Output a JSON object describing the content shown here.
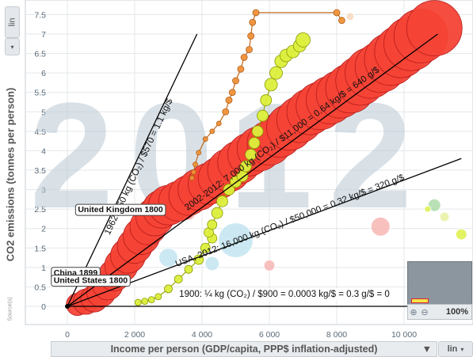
{
  "chart_data": {
    "type": "scatter",
    "year_watermark": "2012",
    "xlabel": "Income per person (GDP/capita, PPP$ inflation-adjusted)",
    "ylabel": "CO2 emissions (tonnes per person)",
    "xlim": [
      -1500,
      11500
    ],
    "ylim": [
      -0.3,
      7.6
    ],
    "x_ticks": [
      0,
      2000,
      4000,
      6000,
      8000,
      10000
    ],
    "x_tick_labels": [
      "0",
      "2 000",
      "4 000",
      "6 000",
      "8 000",
      "10 000"
    ],
    "y_ticks": [
      0,
      0.5,
      1,
      1.5,
      2,
      2.5,
      3,
      3.5,
      4,
      4.5,
      5,
      5.5,
      6,
      6.5,
      7,
      7.5
    ],
    "y_tick_labels": [
      "0",
      "0.5",
      "1",
      "1.5",
      "2",
      "2.5",
      "3",
      "3.5",
      "4",
      "4.5",
      "5",
      "5.5",
      "6",
      "6.5",
      "7",
      "7.5"
    ],
    "colors": {
      "red": "#f44336",
      "yellow": "#dcef3c",
      "orange": "#f0923a",
      "light_blue": "#bfe3f0",
      "pink": "#f6b2ae",
      "green": "#a7d9a2"
    },
    "series": [
      {
        "name": "United States",
        "color": "#f44336",
        "points": [
          [
            300,
            0.05,
            14
          ],
          [
            550,
            0.12,
            16
          ],
          [
            800,
            0.2,
            17
          ],
          [
            1000,
            0.35,
            18
          ],
          [
            1200,
            0.55,
            19
          ],
          [
            1400,
            0.8,
            20
          ],
          [
            1600,
            1.05,
            21
          ],
          [
            1800,
            1.3,
            22
          ],
          [
            2000,
            1.55,
            22
          ],
          [
            2200,
            1.8,
            23
          ],
          [
            2400,
            2.05,
            23
          ],
          [
            2600,
            2.3,
            24
          ],
          [
            2800,
            2.5,
            24
          ],
          [
            3000,
            2.6,
            25
          ],
          [
            3300,
            2.7,
            25
          ],
          [
            3600,
            2.85,
            25
          ],
          [
            3900,
            3.0,
            26
          ],
          [
            4200,
            3.15,
            26
          ],
          [
            4500,
            3.3,
            26
          ],
          [
            4800,
            3.5,
            27
          ],
          [
            5100,
            3.7,
            27
          ],
          [
            5400,
            3.9,
            27
          ],
          [
            5700,
            4.05,
            28
          ],
          [
            6000,
            4.2,
            28
          ],
          [
            6300,
            4.4,
            28
          ],
          [
            6600,
            4.6,
            29
          ],
          [
            6900,
            4.8,
            29
          ],
          [
            7200,
            5.0,
            29
          ],
          [
            7500,
            5.15,
            30
          ],
          [
            7800,
            5.3,
            30
          ],
          [
            8100,
            5.45,
            30
          ],
          [
            8400,
            5.6,
            31
          ],
          [
            8700,
            5.8,
            31
          ],
          [
            9000,
            6.0,
            32
          ],
          [
            9300,
            6.15,
            32
          ],
          [
            9600,
            6.35,
            33
          ],
          [
            9900,
            6.55,
            33
          ],
          [
            10200,
            6.75,
            34
          ],
          [
            10500,
            6.95,
            34
          ],
          [
            10900,
            7.15,
            35
          ]
        ]
      },
      {
        "name": "China",
        "color": "#dcef3c",
        "points": [
          [
            2100,
            0.1,
            4
          ],
          [
            2300,
            0.13,
            4
          ],
          [
            2500,
            0.17,
            4
          ],
          [
            2700,
            0.25,
            4
          ],
          [
            3000,
            0.45,
            5
          ],
          [
            3300,
            0.7,
            5
          ],
          [
            3600,
            0.95,
            5
          ],
          [
            3900,
            1.2,
            6
          ],
          [
            4100,
            1.5,
            6
          ],
          [
            4300,
            1.75,
            6
          ],
          [
            4200,
            1.9,
            6
          ],
          [
            4300,
            2.1,
            6
          ],
          [
            4450,
            2.4,
            7
          ],
          [
            4600,
            2.7,
            7
          ],
          [
            4800,
            3.0,
            7
          ],
          [
            5000,
            3.2,
            7
          ],
          [
            5200,
            3.35,
            7
          ],
          [
            5300,
            3.6,
            7
          ],
          [
            5450,
            3.9,
            7
          ],
          [
            5550,
            4.2,
            7
          ],
          [
            5650,
            4.5,
            7
          ],
          [
            5800,
            4.9,
            7
          ],
          [
            5900,
            5.3,
            7
          ],
          [
            6050,
            5.7,
            8
          ],
          [
            6200,
            6.0,
            8
          ],
          [
            6350,
            6.3,
            8
          ],
          [
            6500,
            6.45,
            8
          ],
          [
            6700,
            6.55,
            8
          ],
          [
            6900,
            6.7,
            8
          ],
          [
            7000,
            6.85,
            9
          ]
        ]
      },
      {
        "name": "United Kingdom",
        "color": "#f0923a",
        "points": [
          [
            3700,
            3.3,
            3
          ],
          [
            3750,
            3.45,
            3
          ],
          [
            3800,
            3.65,
            3
          ],
          [
            3900,
            3.95,
            3
          ],
          [
            4100,
            4.3,
            3
          ],
          [
            4300,
            4.5,
            3
          ],
          [
            4500,
            4.7,
            3
          ],
          [
            4700,
            5.0,
            4
          ],
          [
            4800,
            5.3,
            4
          ],
          [
            4900,
            5.5,
            4
          ],
          [
            5000,
            5.8,
            4
          ],
          [
            5150,
            6.1,
            4
          ],
          [
            5250,
            6.4,
            4
          ],
          [
            5400,
            6.6,
            4
          ],
          [
            5450,
            6.95,
            4
          ],
          [
            5500,
            7.3,
            4
          ],
          [
            5600,
            7.55,
            4
          ],
          [
            8000,
            7.55,
            4
          ],
          [
            8150,
            7.35,
            4
          ]
        ]
      }
    ],
    "other_bubbles": [
      {
        "x": 5000,
        "y": 1.7,
        "r": 22,
        "color": "#bfe3f0"
      },
      {
        "x": 3000,
        "y": 1.25,
        "r": 12,
        "color": "#bfe3f0"
      },
      {
        "x": 4300,
        "y": 1.1,
        "r": 9,
        "color": "#bfe3f0"
      },
      {
        "x": 6000,
        "y": 1.05,
        "r": 7,
        "color": "#f6b2ae"
      },
      {
        "x": 9300,
        "y": 2.05,
        "r": 12,
        "color": "#f6b2ae"
      },
      {
        "x": 10900,
        "y": 2.6,
        "r": 8,
        "color": "#a7d9a2"
      },
      {
        "x": 11200,
        "y": 2.3,
        "r": 6,
        "color": "#e6ef9a"
      },
      {
        "x": 10700,
        "y": 2.5,
        "r": 4,
        "color": "#dcef3c"
      },
      {
        "x": 11700,
        "y": 1.85,
        "r": 7,
        "color": "#dcef3c"
      },
      {
        "x": 8400,
        "y": 7.45,
        "r": 5,
        "color": "#f6d6b8"
      },
      {
        "x": 3600,
        "y": 2.4,
        "r": 9,
        "color": "#f6b2ae"
      }
    ],
    "slope_lines": [
      {
        "label": "1962: 650 kg (CO₂) / $570 = 1.1 kg/$",
        "end": [
          3850,
          7.0
        ]
      },
      {
        "label": "2002-2012: 7,000 kg (CO₂) / $11,000 = 0.64 kg/$ = 640 g/$",
        "end": [
          11000,
          7.0
        ]
      },
      {
        "label": "USA, 2012: 16,000 kg (CO₂) / $50,000 = 0.32 kg/$ = 320 g/$",
        "end": [
          11700,
          3.8
        ]
      },
      {
        "label": "1900: ¼ kg (CO₂) / $900 = 0.0003 kg/$ = 0.3 g/$ = 0",
        "end": [
          11700,
          0.0
        ]
      }
    ],
    "point_labels": [
      {
        "text": "United Kingdom 1800",
        "x": 220,
        "y": 2.5
      },
      {
        "text": "China 1899",
        "x": -500,
        "y": 0.88
      },
      {
        "text": "United States 1800",
        "x": -500,
        "y": 0.68
      }
    ]
  },
  "controls": {
    "y_scale": "lin",
    "x_scale": "lin",
    "zoom_level": "100%",
    "source_label": "Source(s)"
  }
}
